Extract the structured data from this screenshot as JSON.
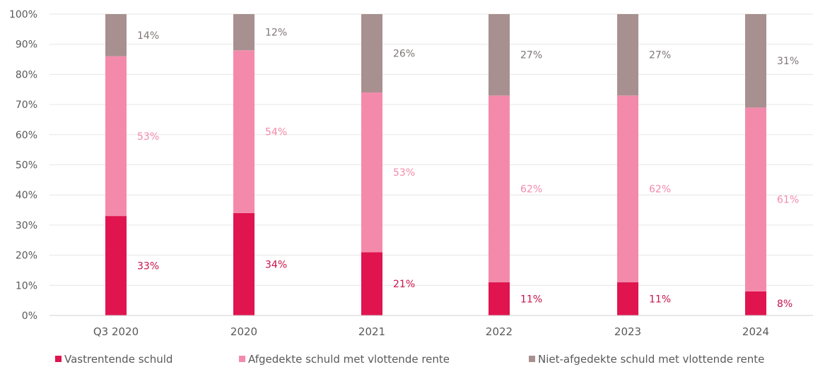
{
  "chart_data": {
    "type": "bar",
    "stacked": true,
    "categories": [
      "Q3 2020",
      "2020",
      "2021",
      "2022",
      "2023",
      "2024"
    ],
    "series": [
      {
        "name": "Vastrentende schuld",
        "values": [
          33,
          34,
          21,
          11,
          11,
          8
        ],
        "labels": [
          "33%",
          "34%",
          "21%",
          "11%",
          "11%",
          "8%"
        ],
        "color": "#e0144e",
        "label_color": "#c8134a"
      },
      {
        "name": "Afgedekte schuld met vlottende rente",
        "values": [
          53,
          54,
          53,
          62,
          62,
          61
        ],
        "labels": [
          "53%",
          "54%",
          "53%",
          "62%",
          "62%",
          "61%"
        ],
        "color": "#f48aab",
        "label_color": "#f48aab"
      },
      {
        "name": "Niet-afgedekte schuld met vlottende rente",
        "values": [
          14,
          12,
          26,
          27,
          27,
          31
        ],
        "labels": [
          "14%",
          "12%",
          "26%",
          "27%",
          "27%",
          "31%"
        ],
        "color": "#a89090",
        "label_color": "#7f7676"
      }
    ],
    "ylim": [
      0,
      100
    ],
    "yticks": [
      "0%",
      "10%",
      "20%",
      "30%",
      "40%",
      "50%",
      "60%",
      "70%",
      "80%",
      "90%",
      "100%"
    ],
    "grid": true,
    "legend_position": "bottom"
  }
}
